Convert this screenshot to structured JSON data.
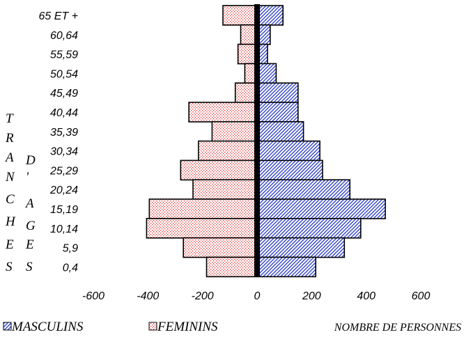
{
  "chart_data": {
    "type": "bar",
    "orientation": "horizontal",
    "categories": [
      "65 ET +",
      "60,64",
      "55,59",
      "50,54",
      "45,49",
      "40,44",
      "35,39",
      "30,34",
      "25,29",
      "20,24",
      "15,19",
      "10,14",
      "5,9",
      "0,4"
    ],
    "series": [
      {
        "name": "MASCULINS",
        "values": [
          95,
          48,
          38,
          70,
          150,
          150,
          170,
          230,
          240,
          340,
          470,
          380,
          320,
          215
        ],
        "color": "#3344cc"
      },
      {
        "name": "FEMININS",
        "values": [
          -125,
          -60,
          -70,
          -45,
          -80,
          -250,
          -165,
          -215,
          -280,
          -235,
          -395,
          -405,
          -270,
          -185
        ],
        "color": "#e03030"
      }
    ],
    "x_ticks": [
      "-600",
      "-400",
      "-200",
      "0",
      "200",
      "400",
      "600"
    ],
    "xlim": [
      -600,
      600
    ],
    "xlabel": "NOMBRE DE PERSONNES",
    "ylabel_left": [
      "T",
      "R",
      "A",
      "N",
      "C",
      "H",
      "E",
      "S"
    ],
    "ylabel_right": [
      "D",
      "'",
      "A",
      "G",
      "E",
      "S"
    ],
    "legend": [
      "MASCULINS",
      "FEMININS"
    ],
    "legend_position": "bottom-left",
    "grid": false
  }
}
